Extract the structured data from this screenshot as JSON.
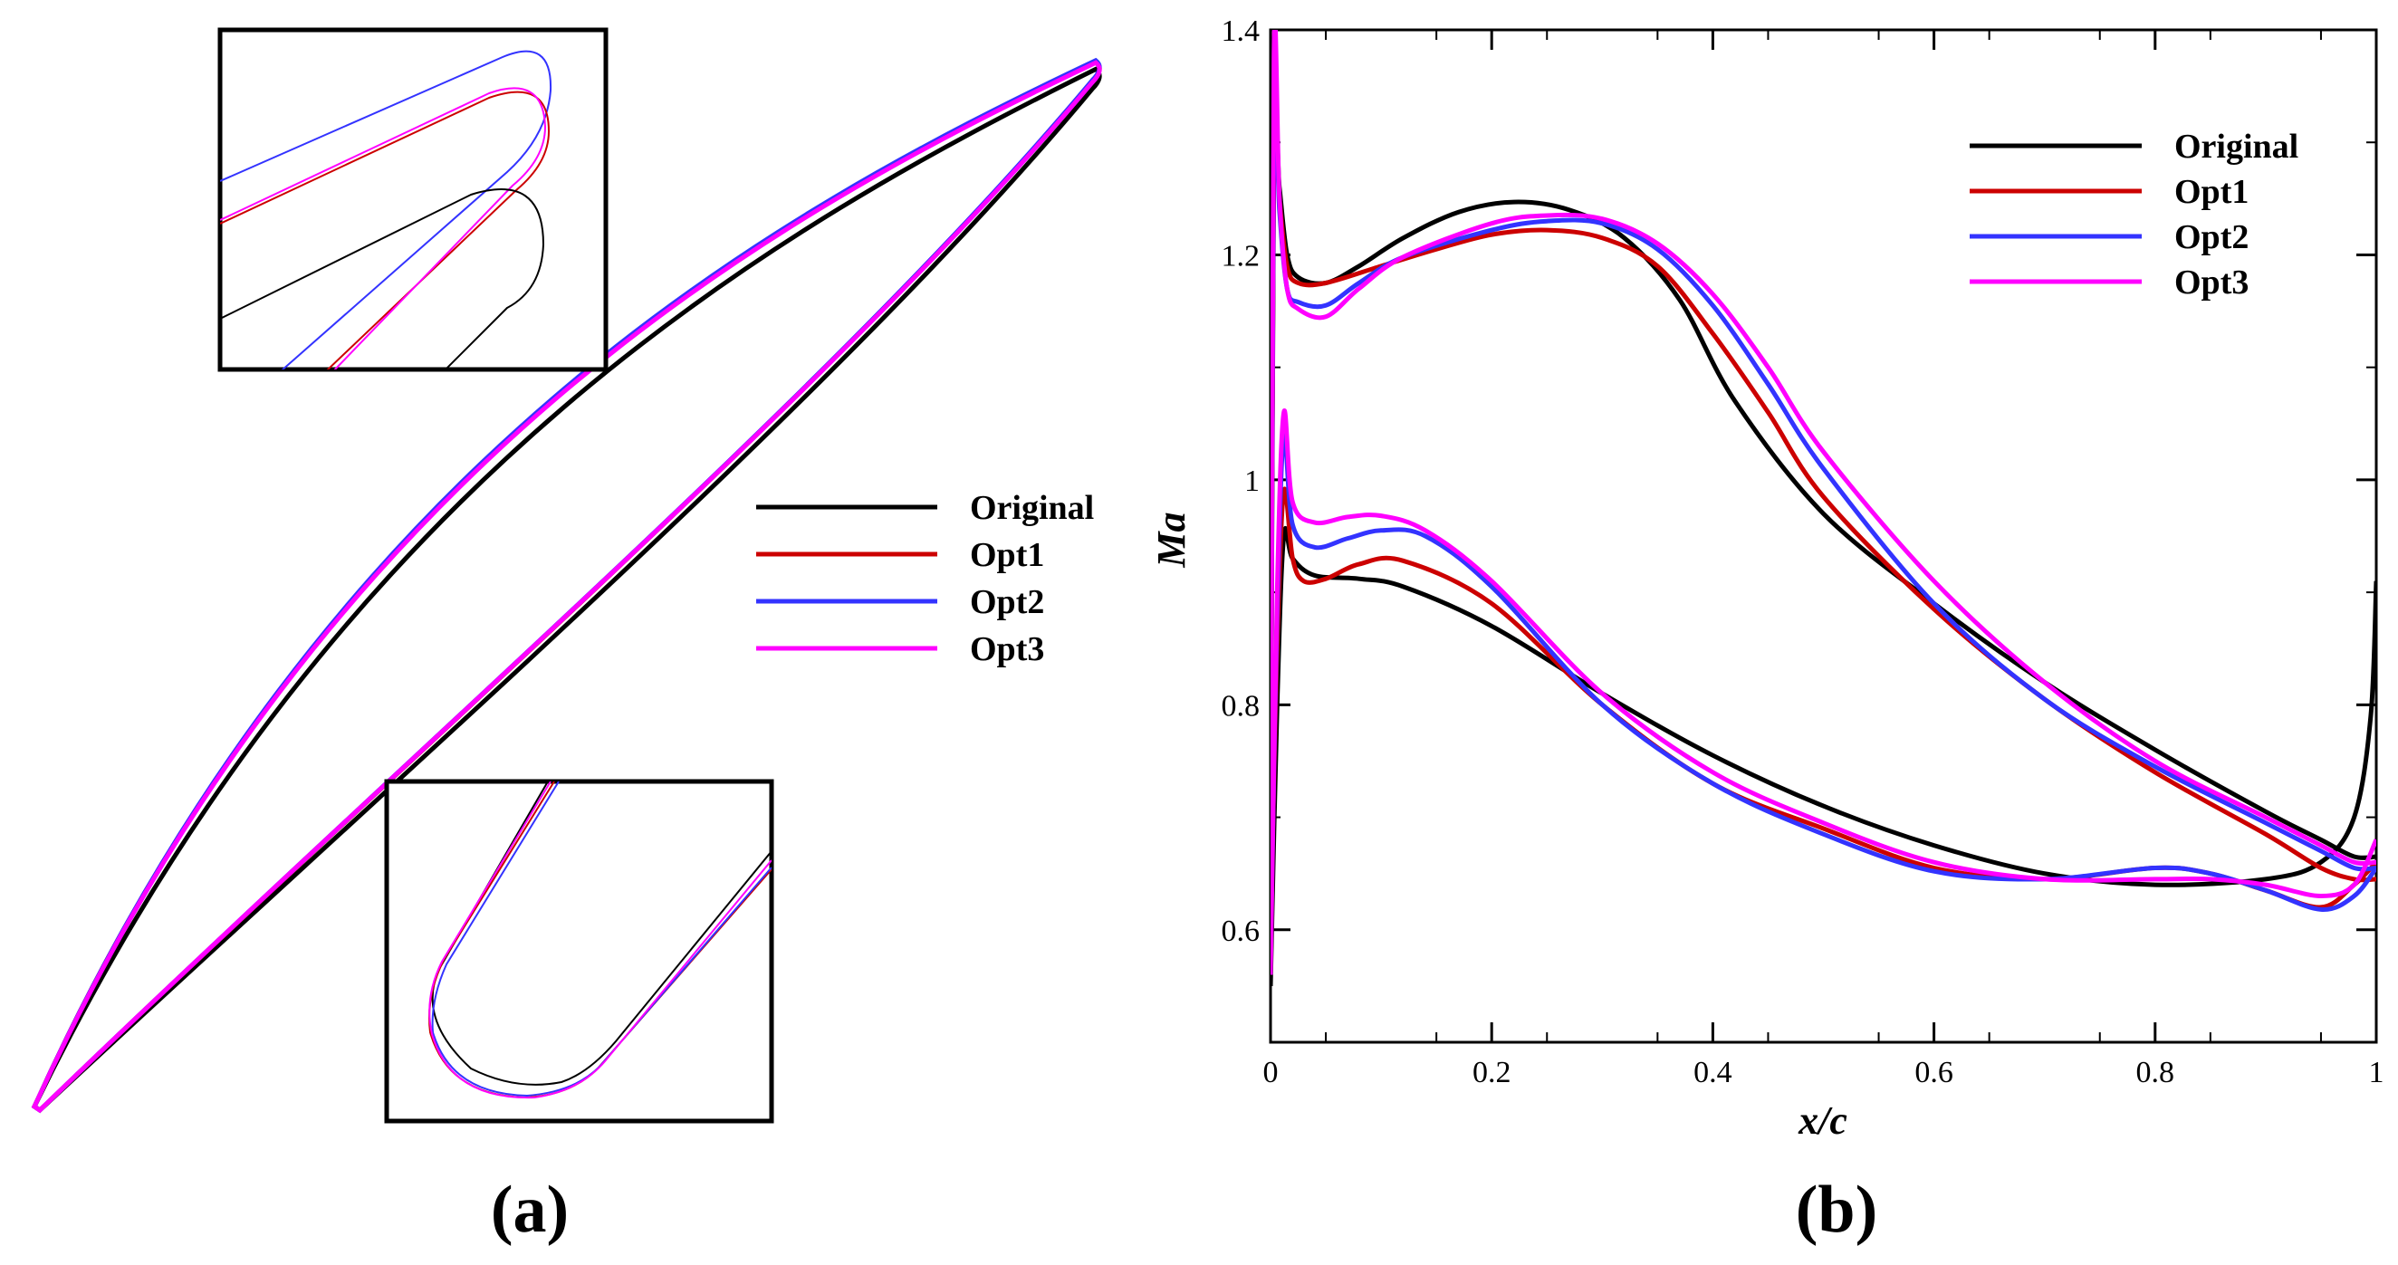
{
  "panels": {
    "a_label": "(a)",
    "b_label": "(b)"
  },
  "legend": [
    {
      "name": "Original",
      "color": "#000000"
    },
    {
      "name": "Opt1",
      "color": "#cc0000"
    },
    {
      "name": "Opt2",
      "color": "#3333ff"
    },
    {
      "name": "Opt3",
      "color": "#ff00ff"
    }
  ],
  "chart_data": [
    {
      "type": "line",
      "panel": "(a)",
      "title": "",
      "xlabel": "",
      "ylabel": "",
      "description_series": [
        "Original",
        "Opt1",
        "Opt2",
        "Opt3"
      ],
      "insets": [
        "trailing-edge zoom",
        "leading-edge zoom"
      ]
    },
    {
      "type": "line",
      "panel": "(b)",
      "title": "",
      "xlabel": "x/c",
      "ylabel": "Ma",
      "xlim": [
        0,
        1
      ],
      "ylim": [
        0.5,
        1.4
      ],
      "xticks": [
        "0",
        "0.2",
        "0.4",
        "0.6",
        "0.8",
        "1"
      ],
      "yticks": [
        "0.6",
        "0.8",
        "1",
        "1.2",
        "1.4"
      ],
      "legend_position": "top-right",
      "series": [
        {
          "name": "Original",
          "color": "#000000",
          "upper": [
            [
              0.0,
              0.55
            ],
            [
              0.003,
              1.3
            ],
            [
              0.008,
              1.26
            ],
            [
              0.015,
              1.2
            ],
            [
              0.025,
              1.18
            ],
            [
              0.05,
              1.175
            ],
            [
              0.08,
              1.19
            ],
            [
              0.12,
              1.215
            ],
            [
              0.17,
              1.238
            ],
            [
              0.22,
              1.247
            ],
            [
              0.27,
              1.24
            ],
            [
              0.32,
              1.215
            ],
            [
              0.37,
              1.16
            ],
            [
              0.42,
              1.07
            ],
            [
              0.5,
              0.97
            ],
            [
              0.6,
              0.89
            ],
            [
              0.7,
              0.82
            ],
            [
              0.8,
              0.76
            ],
            [
              0.9,
              0.705
            ],
            [
              0.95,
              0.68
            ],
            [
              0.98,
              0.665
            ],
            [
              1.0,
              0.665
            ]
          ],
          "lower": [
            [
              0.0,
              0.55
            ],
            [
              0.006,
              0.8
            ],
            [
              0.012,
              0.95
            ],
            [
              0.02,
              0.93
            ],
            [
              0.04,
              0.915
            ],
            [
              0.08,
              0.912
            ],
            [
              0.12,
              0.905
            ],
            [
              0.2,
              0.87
            ],
            [
              0.3,
              0.81
            ],
            [
              0.4,
              0.755
            ],
            [
              0.5,
              0.71
            ],
            [
              0.6,
              0.675
            ],
            [
              0.7,
              0.65
            ],
            [
              0.8,
              0.64
            ],
            [
              0.9,
              0.645
            ],
            [
              0.95,
              0.66
            ],
            [
              0.98,
              0.7
            ],
            [
              0.995,
              0.79
            ],
            [
              1.0,
              0.91
            ]
          ]
        },
        {
          "name": "Opt1",
          "color": "#cc0000",
          "upper": [
            [
              0.0,
              0.6
            ],
            [
              0.003,
              1.32
            ],
            [
              0.008,
              1.25
            ],
            [
              0.015,
              1.19
            ],
            [
              0.025,
              1.175
            ],
            [
              0.05,
              1.175
            ],
            [
              0.1,
              1.19
            ],
            [
              0.15,
              1.205
            ],
            [
              0.2,
              1.218
            ],
            [
              0.25,
              1.222
            ],
            [
              0.3,
              1.215
            ],
            [
              0.35,
              1.19
            ],
            [
              0.4,
              1.13
            ],
            [
              0.45,
              1.06
            ],
            [
              0.5,
              0.985
            ],
            [
              0.6,
              0.885
            ],
            [
              0.7,
              0.805
            ],
            [
              0.8,
              0.74
            ],
            [
              0.9,
              0.685
            ],
            [
              0.95,
              0.655
            ],
            [
              0.98,
              0.645
            ],
            [
              1.0,
              0.645
            ]
          ],
          "lower": [
            [
              0.0,
              0.6
            ],
            [
              0.006,
              0.85
            ],
            [
              0.012,
              0.99
            ],
            [
              0.02,
              0.93
            ],
            [
              0.03,
              0.91
            ],
            [
              0.05,
              0.912
            ],
            [
              0.08,
              0.925
            ],
            [
              0.12,
              0.928
            ],
            [
              0.2,
              0.89
            ],
            [
              0.3,
              0.8
            ],
            [
              0.4,
              0.73
            ],
            [
              0.5,
              0.69
            ],
            [
              0.6,
              0.655
            ],
            [
              0.7,
              0.645
            ],
            [
              0.8,
              0.655
            ],
            [
              0.85,
              0.65
            ],
            [
              0.9,
              0.635
            ],
            [
              0.95,
              0.62
            ],
            [
              0.98,
              0.64
            ],
            [
              1.0,
              0.66
            ]
          ]
        },
        {
          "name": "Opt2",
          "color": "#3333ff",
          "upper": [
            [
              0.0,
              0.58
            ],
            [
              0.003,
              1.33
            ],
            [
              0.008,
              1.24
            ],
            [
              0.015,
              1.17
            ],
            [
              0.025,
              1.158
            ],
            [
              0.05,
              1.155
            ],
            [
              0.08,
              1.175
            ],
            [
              0.12,
              1.198
            ],
            [
              0.2,
              1.222
            ],
            [
              0.25,
              1.23
            ],
            [
              0.3,
              1.228
            ],
            [
              0.35,
              1.205
            ],
            [
              0.4,
              1.155
            ],
            [
              0.45,
              1.085
            ],
            [
              0.5,
              1.01
            ],
            [
              0.6,
              0.89
            ],
            [
              0.7,
              0.805
            ],
            [
              0.8,
              0.745
            ],
            [
              0.9,
              0.695
            ],
            [
              0.95,
              0.67
            ],
            [
              0.98,
              0.655
            ],
            [
              1.0,
              0.655
            ]
          ],
          "lower": [
            [
              0.0,
              0.58
            ],
            [
              0.006,
              0.88
            ],
            [
              0.012,
              1.04
            ],
            [
              0.02,
              0.96
            ],
            [
              0.04,
              0.94
            ],
            [
              0.07,
              0.948
            ],
            [
              0.1,
              0.955
            ],
            [
              0.14,
              0.95
            ],
            [
              0.2,
              0.905
            ],
            [
              0.3,
              0.8
            ],
            [
              0.4,
              0.73
            ],
            [
              0.5,
              0.685
            ],
            [
              0.6,
              0.652
            ],
            [
              0.7,
              0.645
            ],
            [
              0.8,
              0.655
            ],
            [
              0.85,
              0.65
            ],
            [
              0.9,
              0.635
            ],
            [
              0.95,
              0.618
            ],
            [
              0.98,
              0.63
            ],
            [
              1.0,
              0.655
            ]
          ]
        },
        {
          "name": "Opt3",
          "color": "#ff00ff",
          "upper": [
            [
              0.0,
              0.56
            ],
            [
              0.003,
              1.375
            ],
            [
              0.008,
              1.25
            ],
            [
              0.015,
              1.17
            ],
            [
              0.025,
              1.152
            ],
            [
              0.05,
              1.145
            ],
            [
              0.08,
              1.17
            ],
            [
              0.12,
              1.198
            ],
            [
              0.2,
              1.228
            ],
            [
              0.25,
              1.235
            ],
            [
              0.3,
              1.232
            ],
            [
              0.35,
              1.21
            ],
            [
              0.4,
              1.165
            ],
            [
              0.45,
              1.1
            ],
            [
              0.5,
              1.025
            ],
            [
              0.6,
              0.91
            ],
            [
              0.7,
              0.82
            ],
            [
              0.8,
              0.75
            ],
            [
              0.9,
              0.7
            ],
            [
              0.95,
              0.675
            ],
            [
              0.98,
              0.66
            ],
            [
              1.0,
              0.66
            ]
          ],
          "lower": [
            [
              0.0,
              0.56
            ],
            [
              0.006,
              0.9
            ],
            [
              0.012,
              1.06
            ],
            [
              0.02,
              0.98
            ],
            [
              0.04,
              0.962
            ],
            [
              0.07,
              0.967
            ],
            [
              0.1,
              0.968
            ],
            [
              0.14,
              0.955
            ],
            [
              0.2,
              0.91
            ],
            [
              0.3,
              0.81
            ],
            [
              0.4,
              0.74
            ],
            [
              0.5,
              0.695
            ],
            [
              0.6,
              0.66
            ],
            [
              0.7,
              0.645
            ],
            [
              0.8,
              0.645
            ],
            [
              0.85,
              0.645
            ],
            [
              0.9,
              0.64
            ],
            [
              0.95,
              0.63
            ],
            [
              0.98,
              0.64
            ],
            [
              1.0,
              0.68
            ]
          ]
        }
      ]
    }
  ]
}
